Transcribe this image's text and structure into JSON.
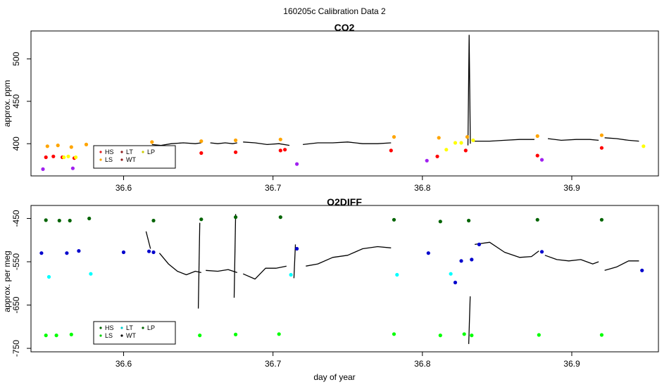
{
  "figure": {
    "supertitle": "160205c   Calibration Data 2"
  },
  "chart_data": [
    {
      "id": "co2",
      "type": "line",
      "title": "CO2",
      "xlabel": "",
      "ylabel": "approx. ppm",
      "xlim": [
        36.538,
        36.958
      ],
      "ylim": [
        362,
        533
      ],
      "xticks": [
        36.6,
        36.7,
        36.8,
        36.9
      ],
      "xtick_labels": [
        "36.6",
        "36.7",
        "36.8",
        "36.9"
      ],
      "yticks": [
        400,
        450,
        500
      ],
      "ytick_labels": [
        "400",
        "450",
        "500"
      ],
      "legend": {
        "position": "bottom-left",
        "entries": [
          {
            "name": "HS",
            "color": "#e41a1c"
          },
          {
            "name": "LT",
            "color": "#8b1a1a"
          },
          {
            "name": "LP",
            "color": "#cccc00"
          },
          {
            "name": "LS",
            "color": "#ffa500"
          },
          {
            "name": "WT",
            "color": "#8b1a1a"
          }
        ]
      },
      "colors": {
        "HS": "#ff0000",
        "LS": "#ffa500",
        "LT": "#a020f0",
        "WT": "#ffff00",
        "ambient": "#000000"
      },
      "series": [
        {
          "name": "ambient",
          "color": "#000000",
          "segments": [
            [
              [
                36.619,
                399
              ],
              [
                36.625,
                398
              ],
              [
                36.632,
                400
              ],
              [
                36.64,
                401
              ],
              [
                36.648,
                400
              ],
              [
                36.652,
                401
              ]
            ],
            [
              [
                36.658,
                401
              ],
              [
                36.663,
                400
              ],
              [
                36.668,
                401
              ],
              [
                36.673,
                400
              ],
              [
                36.676,
                401
              ]
            ],
            [
              [
                36.68,
                402
              ],
              [
                36.688,
                401
              ],
              [
                36.696,
                399
              ],
              [
                36.704,
                400
              ],
              [
                36.711,
                398
              ]
            ],
            [
              [
                36.72,
                399
              ],
              [
                36.73,
                401
              ],
              [
                36.74,
                401
              ],
              [
                36.75,
                402
              ],
              [
                36.76,
                400
              ],
              [
                36.77,
                400
              ],
              [
                36.779,
                401
              ]
            ],
            [
              [
                36.834,
                403
              ],
              [
                36.845,
                403
              ],
              [
                36.855,
                404
              ],
              [
                36.865,
                405
              ],
              [
                36.875,
                405
              ]
            ],
            [
              [
                36.884,
                406
              ],
              [
                36.893,
                404
              ],
              [
                36.903,
                405
              ],
              [
                36.912,
                405
              ],
              [
                36.918,
                404
              ]
            ],
            [
              [
                36.922,
                407
              ],
              [
                36.93,
                406
              ],
              [
                36.938,
                404
              ],
              [
                36.945,
                403
              ]
            ]
          ]
        },
        {
          "name": "spike",
          "color": "#000000",
          "segments": [
            [
              [
                36.8305,
                398
              ],
              [
                36.8313,
                528
              ],
              [
                36.8321,
                400
              ]
            ]
          ]
        },
        {
          "name": "HS",
          "color": "#ff0000",
          "points": [
            [
              36.548,
              384
            ],
            [
              36.553,
              385
            ],
            [
              36.559,
              384
            ],
            [
              36.567,
              383
            ],
            [
              36.652,
              389
            ],
            [
              36.675,
              390
            ],
            [
              36.705,
              392
            ],
            [
              36.708,
              393
            ],
            [
              36.779,
              392
            ],
            [
              36.81,
              385
            ],
            [
              36.829,
              392
            ],
            [
              36.877,
              386
            ],
            [
              36.92,
              395
            ]
          ]
        },
        {
          "name": "LS",
          "color": "#ffa500",
          "points": [
            [
              36.549,
              397
            ],
            [
              36.556,
              398
            ],
            [
              36.565,
              396
            ],
            [
              36.575,
              399
            ],
            [
              36.619,
              402
            ],
            [
              36.652,
              403
            ],
            [
              36.675,
              404
            ],
            [
              36.705,
              405
            ],
            [
              36.781,
              408
            ],
            [
              36.811,
              407
            ],
            [
              36.83,
              408
            ],
            [
              36.877,
              409
            ],
            [
              36.92,
              410
            ]
          ]
        },
        {
          "name": "LT",
          "color": "#a020f0",
          "points": [
            [
              36.546,
              370
            ],
            [
              36.566,
              371
            ],
            [
              36.716,
              376
            ],
            [
              36.803,
              380
            ],
            [
              36.88,
              381
            ]
          ]
        },
        {
          "name": "WT",
          "color": "#ffff00",
          "points": [
            [
              36.56,
              384
            ],
            [
              36.563,
              385
            ],
            [
              36.568,
              384
            ],
            [
              36.816,
              393
            ],
            [
              36.822,
              401
            ],
            [
              36.826,
              401
            ],
            [
              36.834,
              404
            ],
            [
              36.948,
              397
            ]
          ]
        }
      ]
    },
    {
      "id": "o2diff",
      "type": "line",
      "title": "O2DIFF",
      "xlabel": "day of year",
      "ylabel": "approx. per meg",
      "xlim": [
        36.538,
        36.958
      ],
      "ylim": [
        -758,
        -420
      ],
      "xticks": [
        36.6,
        36.7,
        36.8,
        36.9
      ],
      "xtick_labels": [
        "36.6",
        "36.7",
        "36.8",
        "36.9"
      ],
      "yticks": [
        -450,
        -550,
        -650,
        -750
      ],
      "ytick_labels": [
        "-450",
        "-550",
        "-650",
        "-750"
      ],
      "legend": {
        "position": "bottom-left",
        "entries": [
          {
            "name": "HS",
            "color": "#006400"
          },
          {
            "name": "LT",
            "color": "#00cccc"
          },
          {
            "name": "LP",
            "color": "#006400"
          },
          {
            "name": "LS",
            "color": "#00cc00"
          },
          {
            "name": "WT",
            "color": "#000000"
          }
        ]
      },
      "colors": {
        "HS": "#006400",
        "LS": "#00ff00",
        "LT": "#00ffff",
        "WT": "#0000cd",
        "ambient": "#000000"
      },
      "series": [
        {
          "name": "ambient",
          "color": "#000000",
          "segments": [
            [
              [
                36.615,
                -480
              ],
              [
                36.618,
                -520
              ]
            ],
            [
              [
                36.624,
                -530
              ],
              [
                36.63,
                -555
              ],
              [
                36.636,
                -572
              ],
              [
                36.642,
                -580
              ],
              [
                36.648,
                -572
              ],
              [
                36.652,
                -575
              ]
            ],
            [
              [
                36.655,
                -570
              ],
              [
                36.663,
                -572
              ],
              [
                36.67,
                -568
              ],
              [
                36.676,
                -575
              ]
            ],
            [
              [
                36.68,
                -578
              ],
              [
                36.688,
                -590
              ],
              [
                36.695,
                -565
              ],
              [
                36.702,
                -565
              ],
              [
                36.709,
                -560
              ]
            ],
            [
              [
                36.722,
                -560
              ],
              [
                36.73,
                -555
              ],
              [
                36.74,
                -540
              ],
              [
                36.75,
                -535
              ],
              [
                36.76,
                -520
              ],
              [
                36.77,
                -515
              ],
              [
                36.779,
                -518
              ]
            ],
            [
              [
                36.835,
                -510
              ],
              [
                36.845,
                -505
              ],
              [
                36.855,
                -528
              ],
              [
                36.865,
                -540
              ],
              [
                36.873,
                -538
              ],
              [
                36.878,
                -525
              ]
            ],
            [
              [
                36.882,
                -535
              ],
              [
                36.89,
                -545
              ],
              [
                36.898,
                -548
              ],
              [
                36.906,
                -545
              ],
              [
                36.914,
                -555
              ],
              [
                36.918,
                -550
              ]
            ],
            [
              [
                36.922,
                -570
              ],
              [
                36.93,
                -562
              ],
              [
                36.938,
                -548
              ],
              [
                36.945,
                -548
              ]
            ]
          ]
        },
        {
          "name": "spikes",
          "color": "#000000",
          "segments": [
            [
              [
                36.65,
                -658
              ],
              [
                36.651,
                -460
              ]
            ],
            [
              [
                36.674,
                -633
              ],
              [
                36.675,
                -440
              ]
            ],
            [
              [
                36.714,
                -588
              ],
              [
                36.715,
                -510
              ]
            ],
            [
              [
                36.831,
                -740
              ],
              [
                36.832,
                -630
              ]
            ]
          ]
        },
        {
          "name": "HS",
          "color": "#006400",
          "points": [
            [
              36.548,
              -454
            ],
            [
              36.557,
              -455
            ],
            [
              36.564,
              -455
            ],
            [
              36.577,
              -450
            ],
            [
              36.62,
              -455
            ],
            [
              36.652,
              -452
            ],
            [
              36.675,
              -447
            ],
            [
              36.705,
              -447
            ],
            [
              36.781,
              -453
            ],
            [
              36.812,
              -457
            ],
            [
              36.831,
              -455
            ],
            [
              36.877,
              -453
            ],
            [
              36.92,
              -453
            ]
          ]
        },
        {
          "name": "LS",
          "color": "#00ff00",
          "points": [
            [
              36.548,
              -720
            ],
            [
              36.555,
              -720
            ],
            [
              36.565,
              -718
            ],
            [
              36.651,
              -720
            ],
            [
              36.675,
              -718
            ],
            [
              36.704,
              -717
            ],
            [
              36.781,
              -717
            ],
            [
              36.812,
              -720
            ],
            [
              36.828,
              -717
            ],
            [
              36.833,
              -720
            ],
            [
              36.878,
              -719
            ],
            [
              36.92,
              -719
            ]
          ]
        },
        {
          "name": "LT",
          "color": "#00ffff",
          "points": [
            [
              36.55,
              -585
            ],
            [
              36.578,
              -578
            ],
            [
              36.712,
              -580
            ],
            [
              36.783,
              -580
            ],
            [
              36.819,
              -578
            ]
          ]
        },
        {
          "name": "WT",
          "color": "#0000cd",
          "points": [
            [
              36.545,
              -530
            ],
            [
              36.562,
              -530
            ],
            [
              36.57,
              -525
            ],
            [
              36.6,
              -528
            ],
            [
              36.617,
              -526
            ],
            [
              36.62,
              -528
            ],
            [
              36.716,
              -520
            ],
            [
              36.804,
              -530
            ],
            [
              36.822,
              -598
            ],
            [
              36.826,
              -548
            ],
            [
              36.833,
              -545
            ],
            [
              36.838,
              -510
            ],
            [
              36.88,
              -527
            ],
            [
              36.947,
              -570
            ]
          ]
        }
      ]
    }
  ]
}
